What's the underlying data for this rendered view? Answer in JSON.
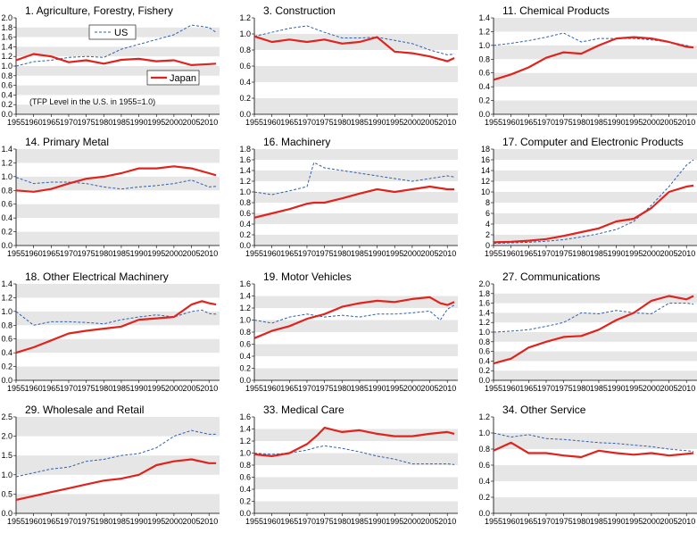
{
  "colors": {
    "us": "#2f5fae",
    "japan": "#e0231c",
    "band": "#e6e6e6"
  },
  "legend": {
    "us": "US",
    "japan": "Japan"
  },
  "note": "(TFP Level in the U.S. in 1955=1.0)",
  "chart_data": [
    {
      "type": "line",
      "title": "1. Agriculture, Forestry, Fishery",
      "x": [
        1955,
        1960,
        1965,
        1970,
        1975,
        1980,
        1985,
        1990,
        1995,
        2000,
        2005,
        2010,
        2012
      ],
      "xticks": [
        1955,
        1960,
        1965,
        1970,
        1975,
        1980,
        1985,
        1990,
        1995,
        2000,
        2005,
        2010
      ],
      "ylim": [
        0,
        2.0
      ],
      "yticks": [
        0,
        0.2,
        0.4,
        0.6,
        0.8,
        1.0,
        1.2,
        1.4,
        1.6,
        1.8,
        2.0
      ],
      "series": [
        {
          "name": "US",
          "values": [
            1.0,
            1.09,
            1.12,
            1.18,
            1.2,
            1.18,
            1.35,
            1.45,
            1.55,
            1.65,
            1.85,
            1.8,
            1.7
          ]
        },
        {
          "name": "Japan",
          "values": [
            1.12,
            1.25,
            1.2,
            1.08,
            1.12,
            1.05,
            1.13,
            1.15,
            1.1,
            1.12,
            1.02,
            1.04,
            1.05
          ]
        }
      ]
    },
    {
      "type": "line",
      "title": "3. Construction",
      "x": [
        1955,
        1960,
        1965,
        1970,
        1975,
        1980,
        1985,
        1990,
        1995,
        2000,
        2005,
        2010,
        2012
      ],
      "xticks": [
        1955,
        1960,
        1965,
        1970,
        1975,
        1980,
        1985,
        1990,
        1995,
        2000,
        2005,
        2010
      ],
      "ylim": [
        0,
        1.2
      ],
      "yticks": [
        0,
        0.2,
        0.4,
        0.6,
        0.8,
        1.0,
        1.2
      ],
      "series": [
        {
          "name": "US",
          "values": [
            0.97,
            1.02,
            1.07,
            1.1,
            1.02,
            0.95,
            0.95,
            0.96,
            0.92,
            0.88,
            0.8,
            0.74,
            0.75
          ]
        },
        {
          "name": "Japan",
          "values": [
            0.97,
            0.9,
            0.93,
            0.9,
            0.93,
            0.88,
            0.9,
            0.96,
            0.78,
            0.76,
            0.72,
            0.66,
            0.7
          ]
        }
      ]
    },
    {
      "type": "line",
      "title": "11. Chemical Products",
      "x": [
        1955,
        1960,
        1965,
        1970,
        1975,
        1980,
        1985,
        1990,
        1995,
        2000,
        2005,
        2010,
        2012
      ],
      "xticks": [
        1955,
        1960,
        1965,
        1970,
        1975,
        1980,
        1985,
        1990,
        1995,
        2000,
        2005,
        2010
      ],
      "ylim": [
        0,
        1.4
      ],
      "yticks": [
        0,
        0.2,
        0.4,
        0.6,
        0.8,
        1.0,
        1.2,
        1.4
      ],
      "series": [
        {
          "name": "US",
          "values": [
            1.0,
            1.03,
            1.07,
            1.12,
            1.18,
            1.05,
            1.1,
            1.1,
            1.1,
            1.08,
            1.05,
            1.0,
            0.97
          ]
        },
        {
          "name": "Japan",
          "values": [
            0.5,
            0.58,
            0.68,
            0.82,
            0.9,
            0.88,
            1.0,
            1.1,
            1.12,
            1.1,
            1.05,
            0.98,
            0.97
          ]
        }
      ]
    },
    {
      "type": "line",
      "title": "14. Primary Metal",
      "x": [
        1955,
        1960,
        1965,
        1970,
        1975,
        1980,
        1985,
        1990,
        1995,
        2000,
        2005,
        2010,
        2012
      ],
      "xticks": [
        1955,
        1960,
        1965,
        1970,
        1975,
        1980,
        1985,
        1990,
        1995,
        2000,
        2005,
        2010
      ],
      "ylim": [
        0,
        1.4
      ],
      "yticks": [
        0,
        0.2,
        0.4,
        0.6,
        0.8,
        1.0,
        1.2,
        1.4
      ],
      "series": [
        {
          "name": "US",
          "values": [
            0.99,
            0.9,
            0.92,
            0.92,
            0.9,
            0.85,
            0.82,
            0.85,
            0.87,
            0.9,
            0.95,
            0.85,
            0.86
          ]
        },
        {
          "name": "Japan",
          "values": [
            0.8,
            0.78,
            0.82,
            0.9,
            0.97,
            1.0,
            1.05,
            1.12,
            1.12,
            1.15,
            1.12,
            1.05,
            1.02
          ]
        }
      ]
    },
    {
      "type": "line",
      "title": "16. Machinery",
      "x": [
        1955,
        1960,
        1965,
        1970,
        1972,
        1975,
        1980,
        1985,
        1990,
        1995,
        2000,
        2005,
        2010,
        2012
      ],
      "xticks": [
        1955,
        1960,
        1965,
        1970,
        1975,
        1980,
        1985,
        1990,
        1995,
        2000,
        2005,
        2010
      ],
      "ylim": [
        0,
        1.8
      ],
      "yticks": [
        0,
        0.2,
        0.4,
        0.6,
        0.8,
        1.0,
        1.2,
        1.4,
        1.6,
        1.8
      ],
      "series": [
        {
          "name": "US",
          "values": [
            1.0,
            0.95,
            1.02,
            1.1,
            1.55,
            1.45,
            1.4,
            1.35,
            1.3,
            1.25,
            1.2,
            1.25,
            1.3,
            1.28
          ]
        },
        {
          "name": "Japan",
          "values": [
            0.52,
            0.6,
            0.68,
            0.78,
            0.8,
            0.8,
            0.88,
            0.97,
            1.05,
            1.0,
            1.05,
            1.1,
            1.05,
            1.05
          ]
        }
      ]
    },
    {
      "type": "line",
      "title": "17. Computer and Electronic Products",
      "x": [
        1955,
        1960,
        1965,
        1970,
        1975,
        1980,
        1985,
        1990,
        1995,
        2000,
        2005,
        2010,
        2012
      ],
      "xticks": [
        1955,
        1960,
        1965,
        1970,
        1975,
        1980,
        1985,
        1990,
        1995,
        2000,
        2005,
        2010
      ],
      "ylim": [
        0,
        18
      ],
      "yticks": [
        0,
        2,
        4,
        6,
        8,
        10,
        12,
        14,
        16,
        18
      ],
      "series": [
        {
          "name": "US",
          "values": [
            0.4,
            0.5,
            0.6,
            0.8,
            1.1,
            1.6,
            2.2,
            3.0,
            4.5,
            7.5,
            11.0,
            15.0,
            16.0
          ]
        },
        {
          "name": "Japan",
          "values": [
            0.6,
            0.7,
            0.9,
            1.2,
            1.8,
            2.5,
            3.2,
            4.5,
            5.0,
            7.0,
            10.0,
            11.0,
            11.2
          ]
        }
      ]
    },
    {
      "type": "line",
      "title": "18. Other Electrical Machinery",
      "x": [
        1955,
        1960,
        1965,
        1970,
        1975,
        1980,
        1985,
        1990,
        1995,
        2000,
        2005,
        2008,
        2010,
        2012
      ],
      "xticks": [
        1955,
        1960,
        1965,
        1970,
        1975,
        1980,
        1985,
        1990,
        1995,
        2000,
        2005,
        2010
      ],
      "ylim": [
        0,
        1.4
      ],
      "yticks": [
        0,
        0.2,
        0.4,
        0.6,
        0.8,
        1.0,
        1.2,
        1.4
      ],
      "series": [
        {
          "name": "US",
          "values": [
            1.0,
            0.8,
            0.85,
            0.85,
            0.84,
            0.82,
            0.88,
            0.92,
            0.95,
            0.92,
            1.0,
            1.02,
            0.97,
            0.96
          ]
        },
        {
          "name": "Japan",
          "values": [
            0.4,
            0.48,
            0.58,
            0.68,
            0.72,
            0.75,
            0.78,
            0.88,
            0.9,
            0.92,
            1.1,
            1.15,
            1.12,
            1.1
          ]
        }
      ]
    },
    {
      "type": "line",
      "title": "19. Motor Vehicles",
      "x": [
        1955,
        1960,
        1965,
        1970,
        1975,
        1980,
        1985,
        1990,
        1995,
        2000,
        2005,
        2008,
        2010,
        2012
      ],
      "xticks": [
        1955,
        1960,
        1965,
        1970,
        1975,
        1980,
        1985,
        1990,
        1995,
        2000,
        2005,
        2010
      ],
      "ylim": [
        0,
        1.6
      ],
      "yticks": [
        0,
        0.2,
        0.4,
        0.6,
        0.8,
        1.0,
        1.2,
        1.4,
        1.6
      ],
      "series": [
        {
          "name": "US",
          "values": [
            1.0,
            0.95,
            1.05,
            1.1,
            1.05,
            1.08,
            1.05,
            1.1,
            1.1,
            1.12,
            1.15,
            1.0,
            1.18,
            1.25
          ]
        },
        {
          "name": "Japan",
          "values": [
            0.7,
            0.82,
            0.9,
            1.02,
            1.1,
            1.22,
            1.28,
            1.32,
            1.3,
            1.35,
            1.38,
            1.28,
            1.25,
            1.3
          ]
        }
      ]
    },
    {
      "type": "line",
      "title": "27. Communications",
      "x": [
        1955,
        1960,
        1965,
        1970,
        1975,
        1980,
        1985,
        1990,
        1995,
        2000,
        2005,
        2010,
        2012
      ],
      "xticks": [
        1955,
        1960,
        1965,
        1970,
        1975,
        1980,
        1985,
        1990,
        1995,
        2000,
        2005,
        2010
      ],
      "ylim": [
        0,
        2.0
      ],
      "yticks": [
        0,
        0.2,
        0.4,
        0.6,
        0.8,
        1.0,
        1.2,
        1.4,
        1.6,
        1.8,
        2.0
      ],
      "series": [
        {
          "name": "US",
          "values": [
            1.0,
            1.02,
            1.05,
            1.12,
            1.2,
            1.4,
            1.38,
            1.45,
            1.4,
            1.38,
            1.6,
            1.6,
            1.58
          ]
        },
        {
          "name": "Japan",
          "values": [
            0.35,
            0.45,
            0.68,
            0.8,
            0.9,
            0.92,
            1.05,
            1.25,
            1.4,
            1.65,
            1.75,
            1.68,
            1.75
          ]
        }
      ]
    },
    {
      "type": "line",
      "title": "29. Wholesale and Retail",
      "x": [
        1955,
        1960,
        1965,
        1970,
        1975,
        1980,
        1985,
        1990,
        1995,
        2000,
        2005,
        2010,
        2012
      ],
      "xticks": [
        1955,
        1960,
        1965,
        1970,
        1975,
        1980,
        1985,
        1990,
        1995,
        2000,
        2005,
        2010
      ],
      "ylim": [
        0,
        2.5
      ],
      "yticks": [
        0,
        0.5,
        1.0,
        1.5,
        2.0,
        2.5
      ],
      "series": [
        {
          "name": "US",
          "values": [
            0.95,
            1.05,
            1.15,
            1.2,
            1.35,
            1.4,
            1.5,
            1.55,
            1.7,
            2.0,
            2.15,
            2.05,
            2.05
          ]
        },
        {
          "name": "Japan",
          "values": [
            0.35,
            0.45,
            0.55,
            0.65,
            0.75,
            0.85,
            0.9,
            1.0,
            1.25,
            1.35,
            1.4,
            1.3,
            1.3
          ]
        }
      ]
    },
    {
      "type": "line",
      "title": "33. Medical Care",
      "x": [
        1955,
        1960,
        1965,
        1970,
        1973,
        1975,
        1980,
        1985,
        1990,
        1995,
        2000,
        2005,
        2010,
        2012
      ],
      "xticks": [
        1955,
        1960,
        1965,
        1970,
        1975,
        1980,
        1985,
        1990,
        1995,
        2000,
        2005,
        2010
      ],
      "ylim": [
        0,
        1.6
      ],
      "yticks": [
        0,
        0.2,
        0.4,
        0.6,
        0.8,
        1.0,
        1.2,
        1.4,
        1.6
      ],
      "series": [
        {
          "name": "US",
          "values": [
            1.0,
            0.98,
            1.0,
            1.05,
            1.1,
            1.12,
            1.08,
            1.02,
            0.95,
            0.9,
            0.82,
            0.82,
            0.82,
            0.81
          ]
        },
        {
          "name": "Japan",
          "values": [
            0.98,
            0.95,
            1.0,
            1.15,
            1.3,
            1.42,
            1.35,
            1.38,
            1.32,
            1.28,
            1.28,
            1.32,
            1.35,
            1.32
          ]
        }
      ]
    },
    {
      "type": "line",
      "title": "34. Other Service",
      "x": [
        1955,
        1960,
        1965,
        1970,
        1975,
        1980,
        1985,
        1990,
        1995,
        2000,
        2005,
        2010,
        2012
      ],
      "xticks": [
        1955,
        1960,
        1965,
        1970,
        1975,
        1980,
        1985,
        1990,
        1995,
        2000,
        2005,
        2010
      ],
      "ylim": [
        0,
        1.2
      ],
      "yticks": [
        0,
        0.2,
        0.4,
        0.6,
        0.8,
        1.0,
        1.2
      ],
      "series": [
        {
          "name": "US",
          "values": [
            1.0,
            0.95,
            0.98,
            0.93,
            0.92,
            0.9,
            0.88,
            0.87,
            0.85,
            0.83,
            0.8,
            0.78,
            0.77
          ]
        },
        {
          "name": "Japan",
          "values": [
            0.78,
            0.88,
            0.75,
            0.75,
            0.72,
            0.7,
            0.78,
            0.75,
            0.73,
            0.75,
            0.72,
            0.74,
            0.75
          ]
        }
      ]
    }
  ]
}
